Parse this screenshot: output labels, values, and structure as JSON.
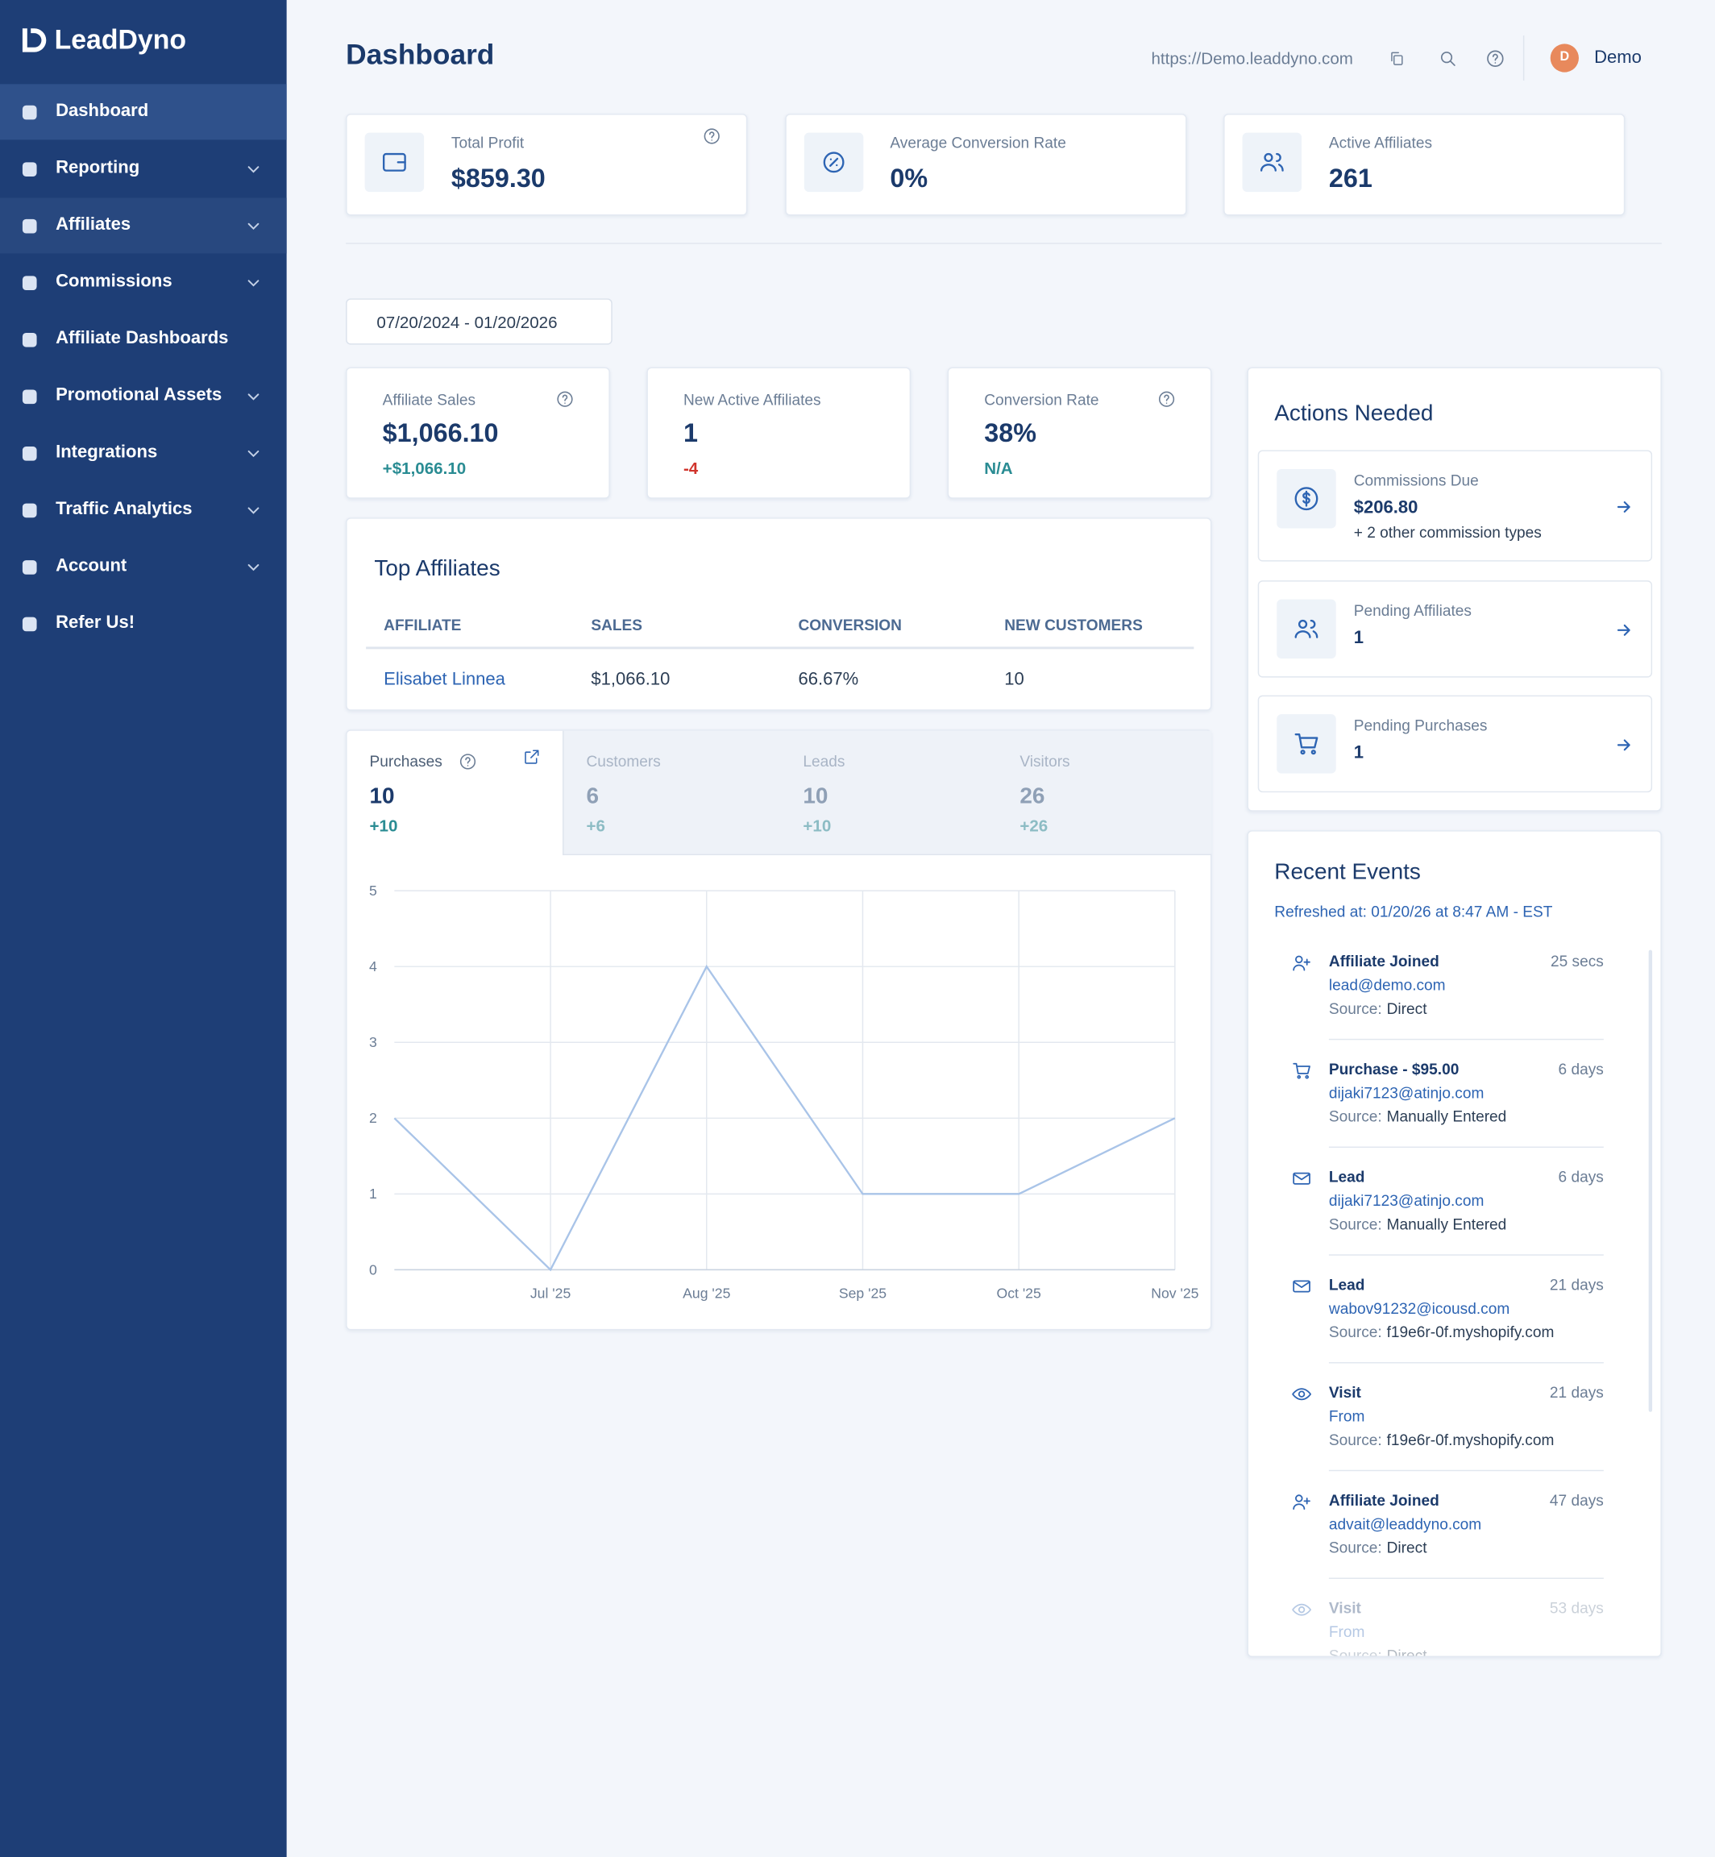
{
  "sidebar": {
    "logo": "LeadDyno",
    "items": [
      {
        "label": "Dashboard",
        "submenu": false
      },
      {
        "label": "Reporting",
        "submenu": true
      },
      {
        "label": "Affiliates",
        "submenu": true
      },
      {
        "label": "Commissions",
        "submenu": true
      },
      {
        "label": "Affiliate Dashboards",
        "submenu": false
      },
      {
        "label": "Promotional Assets",
        "submenu": true
      },
      {
        "label": "Integrations",
        "submenu": true
      },
      {
        "label": "Traffic Analytics",
        "submenu": true
      },
      {
        "label": "Account",
        "submenu": true
      },
      {
        "label": "Refer Us!",
        "submenu": false
      }
    ]
  },
  "header": {
    "title": "Dashboard",
    "url": "https://Demo.leaddyno.com",
    "avatar": "D",
    "user": "Demo"
  },
  "summary_cards": [
    {
      "label": "Total Profit",
      "value": "$859.30"
    },
    {
      "label": "Average Conversion Rate",
      "value": "0%"
    },
    {
      "label": "Active Affiliates",
      "value": "261"
    }
  ],
  "date_range": "07/20/2024 - 01/20/2026",
  "kpis": [
    {
      "label": "Affiliate Sales",
      "value": "$1,066.10",
      "change": "+$1,066.10"
    },
    {
      "label": "New Active Affiliates",
      "value": "1",
      "change": "-4"
    },
    {
      "label": "Conversion Rate",
      "value": "38%",
      "change": "N/A"
    }
  ],
  "top_affiliates": {
    "title": "Top Affiliates",
    "columns": [
      "AFFILIATE",
      "SALES",
      "CONVERSION",
      "NEW CUSTOMERS"
    ],
    "rows": [
      [
        "Elisabet Linnea",
        "$1,066.10",
        "66.67%",
        "10"
      ]
    ]
  },
  "tabs": [
    {
      "label": "Purchases",
      "value": "10",
      "change": "+10"
    },
    {
      "label": "Customers",
      "value": "6",
      "change": "+6"
    },
    {
      "label": "Leads",
      "value": "10",
      "change": "+10"
    },
    {
      "label": "Visitors",
      "value": "26",
      "change": "+26"
    }
  ],
  "chart_data": {
    "type": "line",
    "categories": [
      null,
      "Jul '25",
      "Aug '25",
      "Sep '25",
      "Oct '25",
      "Nov '25"
    ],
    "values": [
      2,
      0,
      4,
      1,
      1,
      2
    ],
    "color": "#a9c4e8",
    "ylim": [
      0,
      5
    ],
    "yticks": [
      0,
      1,
      2,
      3,
      4,
      5
    ],
    "grid": true
  },
  "actions": {
    "title": "Actions Needed",
    "items": [
      {
        "label": "Commissions Due",
        "value": "$206.80",
        "note": "+ 2 other commission types"
      },
      {
        "label": "Pending Affiliates",
        "value": "1"
      },
      {
        "label": "Pending Purchases",
        "value": "1"
      }
    ]
  },
  "events": {
    "title": "Recent Events",
    "refreshed": "Refreshed at: 01/20/26 at 8:47 AM - EST",
    "source_label": "Source:",
    "items": [
      {
        "title": "Affiliate Joined",
        "time": "25 secs",
        "detail": "lead@demo.com",
        "source": "Direct"
      },
      {
        "title": "Purchase - $95.00",
        "time": "6 days",
        "detail": "dijaki7123@atinjo.com",
        "source": "Manually Entered"
      },
      {
        "title": "Lead",
        "time": "6 days",
        "detail": "dijaki7123@atinjo.com",
        "source": "Manually Entered"
      },
      {
        "title": "Lead",
        "time": "21 days",
        "detail": "wabov91232@icousd.com",
        "source": "f19e6r-0f.myshopify.com"
      },
      {
        "title": "Visit",
        "time": "21 days",
        "detail": "From",
        "source": "f19e6r-0f.myshopify.com"
      },
      {
        "title": "Affiliate Joined",
        "time": "47 days",
        "detail": "advait@leaddyno.com",
        "source": "Direct"
      },
      {
        "title": "Visit",
        "time": "53 days",
        "detail": "From",
        "source": "Direct"
      }
    ]
  }
}
